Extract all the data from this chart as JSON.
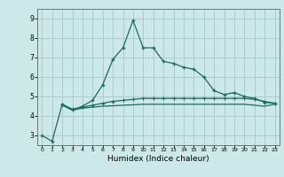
{
  "title": "",
  "xlabel": "Humidex (Indice chaleur)",
  "bg_color": "#cce8e8",
  "grid_color": "#aacccc",
  "line_color": "#1a6b60",
  "x_values": [
    0,
    1,
    2,
    3,
    4,
    5,
    6,
    7,
    8,
    9,
    10,
    11,
    12,
    13,
    14,
    15,
    16,
    17,
    18,
    19,
    20,
    21,
    22,
    23
  ],
  "line1_y": [
    3.0,
    2.7,
    4.6,
    4.3,
    4.5,
    4.8,
    5.6,
    6.9,
    7.5,
    8.9,
    7.5,
    7.5,
    6.8,
    6.7,
    6.5,
    6.4,
    6.0,
    5.3,
    5.1,
    5.2,
    5.0,
    4.9,
    4.7,
    4.65
  ],
  "line2_y": [
    null,
    null,
    4.6,
    4.35,
    4.45,
    4.55,
    4.65,
    4.75,
    4.8,
    4.85,
    4.9,
    4.9,
    4.9,
    4.9,
    4.9,
    4.9,
    4.9,
    4.9,
    4.9,
    4.9,
    4.9,
    4.85,
    4.75,
    4.65
  ],
  "line3_y": [
    null,
    null,
    4.55,
    4.3,
    4.4,
    4.45,
    4.5,
    4.52,
    4.55,
    4.57,
    4.6,
    4.6,
    4.6,
    4.6,
    4.6,
    4.6,
    4.6,
    4.6,
    4.6,
    4.6,
    4.6,
    4.55,
    4.5,
    4.6
  ],
  "ylim": [
    2.5,
    9.5
  ],
  "yticks": [
    3,
    4,
    5,
    6,
    7,
    8,
    9
  ],
  "xlim": [
    -0.5,
    23.5
  ]
}
